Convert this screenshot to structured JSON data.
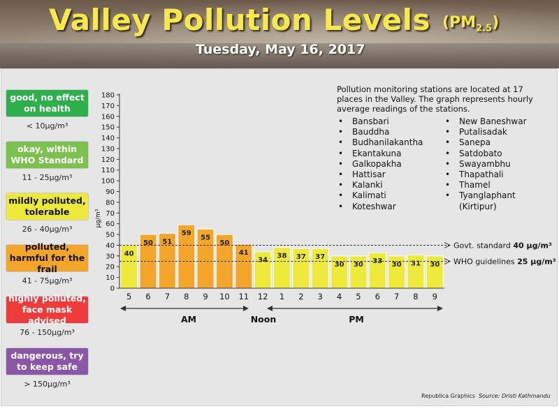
{
  "header": {
    "title": "Valley Pollution Levels",
    "title_suffix": "(PM2.5)",
    "date": "Tuesday, May 16, 2017"
  },
  "legend": [
    {
      "label": "good, no effect on health",
      "range": "< 10µg/m³",
      "color": "#2db04b",
      "text_color": "#ffffff"
    },
    {
      "label": "okay, within WHO Standard",
      "range": "11 - 25µg/m³",
      "color": "#7cc04e",
      "text_color": "#ffffff"
    },
    {
      "label": "mildly polluted, tolerable",
      "range": "26 - 40µg/m³",
      "color": "#eeea3c",
      "text_color": "#111111"
    },
    {
      "label": "polluted, harmful for the frail",
      "range": "41 - 75µg/m³",
      "color": "#f4a62a",
      "text_color": "#111111"
    },
    {
      "label": "highly polluted, face mask advised",
      "range": "76 - 150µg/m³",
      "color": "#ee3b3b",
      "text_color": "#ffffff"
    },
    {
      "label": "dangerous, try to keep safe",
      "range": "> 150µg/m³",
      "color": "#8a56a8",
      "text_color": "#ffffff"
    }
  ],
  "info": {
    "text": "Pollution monitoring stations are located at 17 places in the Valley. The graph represents hourly average readings of the stations.",
    "stations_col1": [
      "Bansbari",
      "Bauddha",
      "Budhanilakantha",
      "Ekantakuna",
      "Galkopakha",
      "Hattisar",
      "Kalanki",
      "Kalimati",
      "Koteshwar"
    ],
    "stations_col2": [
      "New Baneshwar",
      "Putalisadak",
      "Sanepa",
      "Satdobato",
      "Swayambhu",
      "Thapathali",
      "Thamel",
      "Tyanglaphant",
      "(Kirtipur)"
    ],
    "bullet": "•"
  },
  "chart_data": {
    "type": "bar",
    "categories": [
      "5",
      "6",
      "7",
      "8",
      "9",
      "10",
      "11",
      "12",
      "1",
      "2",
      "3",
      "4",
      "5",
      "6",
      "7",
      "8",
      "9"
    ],
    "values": [
      40,
      50,
      51,
      59,
      55,
      50,
      41,
      34,
      38,
      37,
      37,
      30,
      30,
      33,
      30,
      31,
      30
    ],
    "ylabel": "µg/m³",
    "ylim": [
      0,
      180
    ],
    "ytick_step": 10,
    "period_labels": {
      "am": "AM",
      "noon": "Noon",
      "pm": "PM"
    },
    "reference_lines": [
      {
        "label": "Govt. standard",
        "value_text": "40 µg/m³",
        "value": 40
      },
      {
        "label": "WHO guidelines",
        "value_text": "25 µg/m³",
        "value": 25
      }
    ],
    "bar_colors": {
      "mild": "#eeea3c",
      "polluted": "#f4a62a"
    }
  },
  "credit": {
    "graphics": "Republica Graphics",
    "source": "Source: Dristi Kathmandu"
  }
}
